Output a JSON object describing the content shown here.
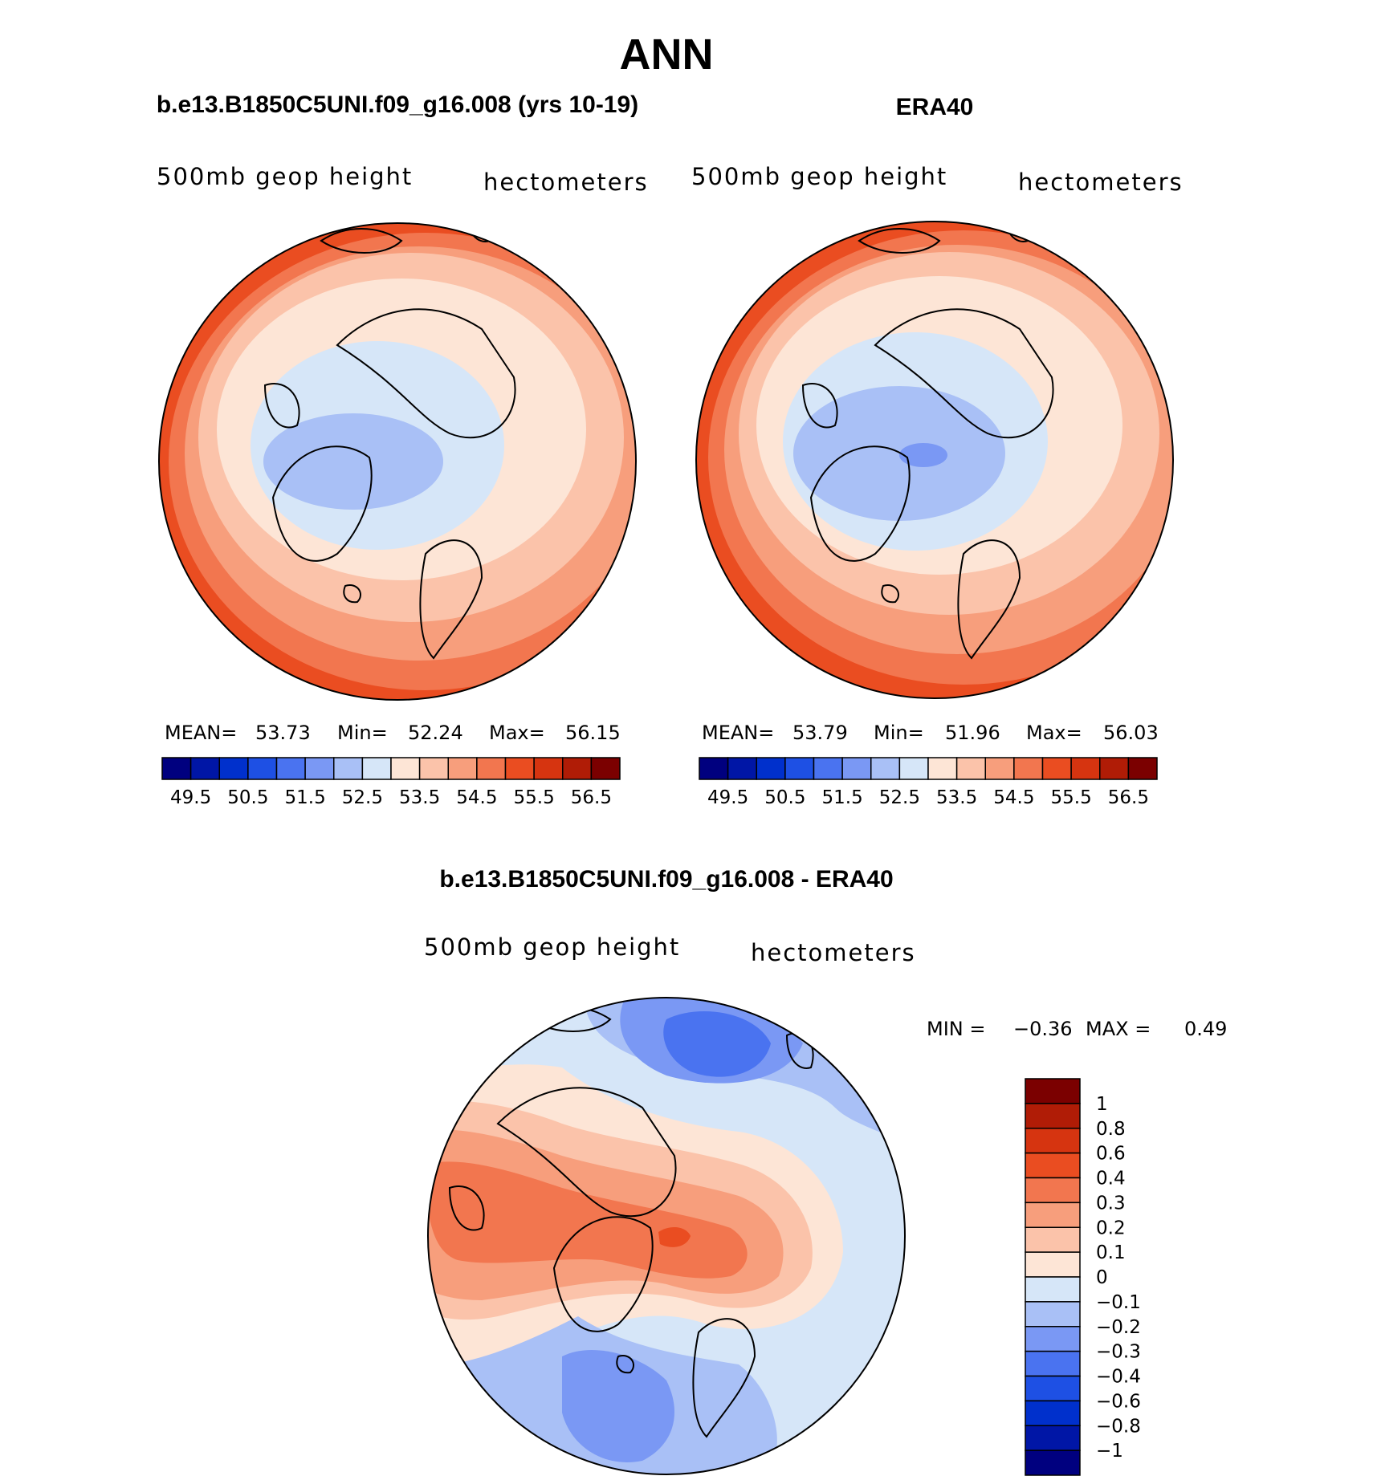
{
  "figure_title": "ANN",
  "chart_data": [
    {
      "type": "polar-contour-map",
      "title": "b.e13.B1850C5UNI.f09_g16.008 (yrs 10-19)",
      "variable": "500mb geop height",
      "units": "hectometers",
      "stats": {
        "mean_label": "MEAN=",
        "mean": "53.73",
        "min_label": "Min=",
        "min": "52.24",
        "max_label": "Max=",
        "max": "56.15"
      },
      "colorbar": {
        "orientation": "horizontal",
        "tick_labels": [
          "49.5",
          "50.5",
          "51.5",
          "52.5",
          "53.5",
          "54.5",
          "55.5",
          "56.5"
        ],
        "levels": [
          49.5,
          50,
          50.5,
          51,
          51.5,
          52,
          52.5,
          53,
          53.5,
          54,
          54.5,
          55,
          55.5,
          56,
          56.5
        ],
        "colors": [
          "#00007f",
          "#0016a6",
          "#0030cc",
          "#1e50e4",
          "#4a73f0",
          "#7a98f4",
          "#a9c0f6",
          "#d6e6f8",
          "#fde5d6",
          "#fbc3aa",
          "#f79e7c",
          "#f2764f",
          "#ea4d21",
          "#d63410",
          "#b01c06",
          "#7b0000"
        ]
      },
      "field_fill_colors": [
        "#a9c0f6",
        "#d6e6f8",
        "#fde5d6",
        "#fbc3aa",
        "#f79e7c",
        "#f2764f",
        "#ea4d21",
        "#d63410"
      ]
    },
    {
      "type": "polar-contour-map",
      "title": "ERA40",
      "variable": "500mb geop height",
      "units": "hectometers",
      "stats": {
        "mean_label": "MEAN=",
        "mean": "53.79",
        "min_label": "Min=",
        "min": "51.96",
        "max_label": "Max=",
        "max": "56.03"
      },
      "colorbar": {
        "orientation": "horizontal",
        "tick_labels": [
          "49.5",
          "50.5",
          "51.5",
          "52.5",
          "53.5",
          "54.5",
          "55.5",
          "56.5"
        ],
        "levels": [
          49.5,
          50,
          50.5,
          51,
          51.5,
          52,
          52.5,
          53,
          53.5,
          54,
          54.5,
          55,
          55.5,
          56,
          56.5
        ],
        "colors": [
          "#00007f",
          "#0016a6",
          "#0030cc",
          "#1e50e4",
          "#4a73f0",
          "#7a98f4",
          "#a9c0f6",
          "#d6e6f8",
          "#fde5d6",
          "#fbc3aa",
          "#f79e7c",
          "#f2764f",
          "#ea4d21",
          "#d63410",
          "#b01c06",
          "#7b0000"
        ]
      },
      "field_fill_colors": [
        "#7a98f4",
        "#a9c0f6",
        "#d6e6f8",
        "#fde5d6",
        "#fbc3aa",
        "#f79e7c",
        "#f2764f",
        "#ea4d21",
        "#d63410"
      ]
    },
    {
      "type": "polar-contour-map",
      "title": "b.e13.B1850C5UNI.f09_g16.008 - ERA40",
      "variable": "500mb geop height",
      "units": "hectometers",
      "stats": {
        "min_label": "MIN =",
        "min": "−0.36",
        "max_label": "MAX =",
        "max": "0.49"
      },
      "colorbar": {
        "orientation": "vertical",
        "tick_labels": [
          "1",
          "0.8",
          "0.6",
          "0.4",
          "0.3",
          "0.2",
          "0.1",
          "0",
          "−0.1",
          "−0.2",
          "−0.3",
          "−0.4",
          "−0.6",
          "−0.8",
          "−1"
        ],
        "levels": [
          1,
          0.8,
          0.6,
          0.4,
          0.3,
          0.2,
          0.1,
          0,
          -0.1,
          -0.2,
          -0.3,
          -0.4,
          -0.6,
          -0.8,
          -1
        ],
        "colors_top_to_bottom": [
          "#7b0000",
          "#b01c06",
          "#d63410",
          "#ea4d21",
          "#f2764f",
          "#f79e7c",
          "#fbc3aa",
          "#fde5d6",
          "#d6e6f8",
          "#a9c0f6",
          "#7a98f4",
          "#4a73f0",
          "#1e50e4",
          "#0030cc",
          "#0016a6",
          "#00007f"
        ]
      }
    }
  ]
}
